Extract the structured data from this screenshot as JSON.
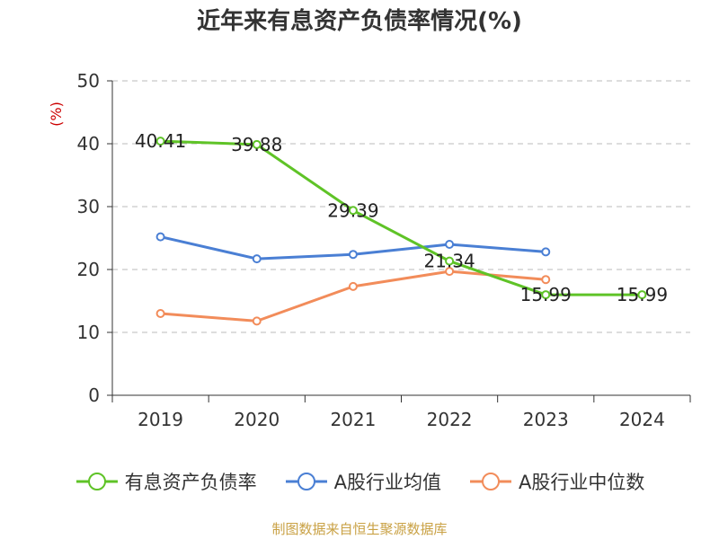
{
  "colors": {
    "series": [
      "#5fc327",
      "#4a7fd4",
      "#f28c5a"
    ],
    "unit": "#cc0000",
    "source": "#c9a144",
    "grid": "#bbbbbb",
    "axis": "#333333"
  },
  "chart_data": {
    "type": "line",
    "title": "近年来有息资产负债率情况(%)",
    "ylabel": "(%)",
    "xlabel": "",
    "categories": [
      "2019",
      "2020",
      "2021",
      "2022",
      "2023",
      "2024"
    ],
    "ylim": [
      0,
      50
    ],
    "yticks": [
      0,
      10,
      20,
      30,
      40,
      50
    ],
    "grid": true,
    "legend_position": "bottom",
    "series": [
      {
        "name": "有息资产负债率",
        "values": [
          40.41,
          39.88,
          29.39,
          21.34,
          15.99,
          15.99
        ],
        "labels": [
          "40.41",
          "39.88",
          "29.39",
          "21.34",
          "15.99",
          "15.99"
        ]
      },
      {
        "name": "A股行业均值",
        "values": [
          25.2,
          21.7,
          22.4,
          24.0,
          22.8,
          null
        ]
      },
      {
        "name": "A股行业中位数",
        "values": [
          13.0,
          11.8,
          17.3,
          19.7,
          18.4,
          null
        ]
      }
    ]
  },
  "source_note": "制图数据来自恒生聚源数据库"
}
